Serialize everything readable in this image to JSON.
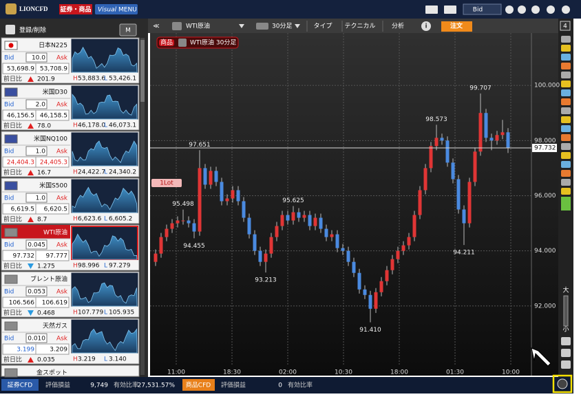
{
  "header": {
    "logo": "LIONCFD",
    "badge": "証券・商品",
    "menu_visual": "Visual",
    "menu": "MENU",
    "price_type": "Bid"
  },
  "watchlist": {
    "edit": "登録/削除",
    "mode": "M",
    "bid_label": "Bid",
    "ask_label": "Ask",
    "change_label": "前日比",
    "high_label": "H",
    "low_label": "L",
    "items": [
      {
        "name": "日本N225",
        "spread": "10.0",
        "bid": "53,698.9",
        "ask": "53,708.9",
        "change": "201.9",
        "direction": "up",
        "high": "53,883.6",
        "low": "53,426.1"
      },
      {
        "name": "米国D30",
        "spread": "2.0",
        "bid": "46,156.5",
        "ask": "46,158.5",
        "change": "78.0",
        "direction": "up",
        "high": "46,178.0",
        "low": "46,073.1"
      },
      {
        "name": "米国NQ100",
        "spread": "1.0",
        "bid": "24,404.3",
        "ask": "24,405.3",
        "change": "16.7",
        "direction": "up",
        "high": "24,422.7",
        "low": "24,340.2",
        "bid_color": "#e02020",
        "ask_color": "#e02020"
      },
      {
        "name": "米国S500",
        "spread": "1.0",
        "bid": "6,619.5",
        "ask": "6,620.5",
        "change": "8.7",
        "direction": "up",
        "high": "6,623.6",
        "low": "6,605.2"
      },
      {
        "name": "WTI原油",
        "spread": "0.045",
        "bid": "97.732",
        "ask": "97.777",
        "change": "1.275",
        "direction": "down",
        "high": "98.996",
        "low": "97.279",
        "selected": true
      },
      {
        "name": "ブレント原油",
        "spread": "0.053",
        "bid": "106.566",
        "ask": "106.619",
        "change": "0.468",
        "direction": "down",
        "high": "107.779",
        "low": "105.935"
      },
      {
        "name": "天然ガス",
        "spread": "0.010",
        "bid": "3.199",
        "ask": "3.209",
        "change": "0.035",
        "direction": "up",
        "high": "3.219",
        "low": "3.140",
        "bid_color": "#2060d0"
      },
      {
        "name": "金スポット"
      }
    ]
  },
  "toolbar": {
    "collapse": "≪",
    "symbol": "WTI原油",
    "timeframe": "30分足",
    "type": "タイプ",
    "technical": "テクニカル",
    "analysis": "分析",
    "info": "i",
    "order": "注文",
    "layout_count": "4"
  },
  "chart_data": {
    "type": "candlestick",
    "tag": "商品",
    "title": "WTI原油 30分足",
    "lot": "1Lot",
    "up_color": "#e03535",
    "down_color": "#4a8ae0",
    "ylim": [
      89.475,
      101.9
    ],
    "yticks": [
      {
        "value": 92,
        "label": "92.000"
      },
      {
        "value": 94,
        "label": "94.000"
      },
      {
        "value": 96,
        "label": "96.000"
      },
      {
        "value": 98,
        "label": "98.000"
      },
      {
        "value": 100,
        "label": "100.000"
      }
    ],
    "x_labels": [
      "11:00",
      "18:30",
      "02:00",
      "10:30",
      "18:00",
      "01:30",
      "10:00"
    ],
    "annotations": [
      "97.651",
      "95.498",
      "94.455",
      "93.213",
      "95.625",
      "91.410",
      "98.573",
      "99.707",
      "94.211"
    ],
    "candles": [
      [
        93.6,
        94.05,
        93.45,
        93.9
      ],
      [
        93.9,
        94.65,
        93.75,
        94.5
      ],
      [
        94.5,
        94.95,
        94.35,
        94.8
      ],
      [
        94.8,
        95.15,
        94.65,
        95.0
      ],
      [
        95.0,
        95.25,
        94.85,
        95.1
      ],
      [
        95.1,
        95.498,
        94.95,
        95.1
      ],
      [
        95.1,
        95.25,
        94.85,
        95.0
      ],
      [
        95.0,
        95.15,
        94.455,
        94.7
      ],
      [
        94.7,
        97.651,
        94.55,
        97.0
      ],
      [
        97.0,
        97.15,
        96.25,
        96.4
      ],
      [
        96.4,
        97.05,
        96.25,
        96.9
      ],
      [
        96.9,
        97.05,
        96.35,
        96.5
      ],
      [
        96.5,
        96.65,
        95.65,
        95.8
      ],
      [
        95.8,
        96.05,
        95.65,
        95.9
      ],
      [
        95.9,
        96.35,
        95.75,
        96.2
      ],
      [
        96.2,
        96.35,
        95.65,
        95.8
      ],
      [
        95.8,
        95.95,
        95.05,
        95.2
      ],
      [
        95.2,
        95.35,
        94.45,
        94.6
      ],
      [
        94.6,
        94.75,
        93.85,
        94.0
      ],
      [
        94.0,
        94.15,
        93.45,
        93.6
      ],
      [
        93.6,
        94.05,
        93.213,
        93.9
      ],
      [
        93.9,
        94.65,
        93.75,
        94.5
      ],
      [
        94.5,
        95.05,
        94.35,
        94.9
      ],
      [
        94.9,
        95.45,
        94.75,
        95.3
      ],
      [
        95.3,
        95.45,
        94.95,
        95.1
      ],
      [
        95.1,
        95.625,
        94.95,
        95.4
      ],
      [
        95.4,
        95.55,
        95.05,
        95.2
      ],
      [
        95.2,
        95.45,
        95.05,
        95.3
      ],
      [
        95.3,
        95.45,
        94.75,
        94.9
      ],
      [
        94.9,
        95.35,
        94.75,
        95.2
      ],
      [
        95.2,
        95.35,
        94.65,
        94.8
      ],
      [
        94.8,
        94.95,
        94.35,
        94.5
      ],
      [
        94.5,
        94.75,
        94.35,
        94.6
      ],
      [
        94.6,
        94.75,
        93.95,
        94.1
      ],
      [
        94.1,
        94.25,
        93.85,
        94.0
      ],
      [
        94.0,
        94.15,
        93.45,
        93.6
      ],
      [
        93.6,
        93.75,
        93.05,
        93.2
      ],
      [
        93.2,
        93.35,
        92.45,
        92.6
      ],
      [
        92.6,
        92.75,
        92.25,
        92.4
      ],
      [
        92.4,
        92.55,
        91.41,
        91.9
      ],
      [
        91.9,
        92.65,
        91.75,
        92.5
      ],
      [
        92.5,
        93.05,
        92.35,
        92.9
      ],
      [
        92.9,
        93.45,
        92.75,
        93.3
      ],
      [
        93.3,
        93.85,
        93.15,
        93.7
      ],
      [
        93.7,
        94.15,
        93.55,
        94.0
      ],
      [
        94.0,
        94.35,
        93.85,
        94.2
      ],
      [
        94.2,
        94.65,
        94.05,
        94.5
      ],
      [
        94.5,
        95.45,
        94.35,
        95.3
      ],
      [
        95.3,
        96.35,
        95.15,
        96.2
      ],
      [
        96.2,
        97.15,
        96.05,
        97.0
      ],
      [
        97.0,
        97.95,
        96.85,
        97.8
      ],
      [
        97.8,
        98.573,
        97.65,
        98.1
      ],
      [
        98.1,
        98.25,
        97.85,
        98.0
      ],
      [
        98.0,
        98.15,
        97.05,
        97.2
      ],
      [
        97.2,
        97.35,
        96.45,
        96.6
      ],
      [
        96.6,
        96.75,
        95.35,
        95.5
      ],
      [
        95.5,
        95.65,
        94.211,
        95.0
      ],
      [
        95.0,
        96.65,
        94.85,
        96.5
      ],
      [
        96.5,
        97.75,
        96.35,
        97.6
      ],
      [
        97.6,
        99.707,
        97.45,
        99.0
      ],
      [
        99.0,
        99.15,
        97.95,
        98.1
      ],
      [
        98.1,
        98.25,
        97.65,
        98.0
      ],
      [
        98.0,
        98.35,
        97.85,
        98.2
      ],
      [
        98.2,
        98.75,
        98.05,
        98.3
      ],
      [
        98.3,
        98.45,
        97.55,
        97.732
      ]
    ]
  },
  "side_tools": {
    "large": "大",
    "small": "小"
  },
  "status": {
    "securities": "証券CFD",
    "pl_label": "評価損益",
    "pl": "9,749",
    "ratio_label": "有効比率",
    "ratio": "27,531.57%",
    "commodities": "商品CFD",
    "pl_label2": "評価損益",
    "pl2": "0",
    "ratio_label2": "有効比率"
  }
}
